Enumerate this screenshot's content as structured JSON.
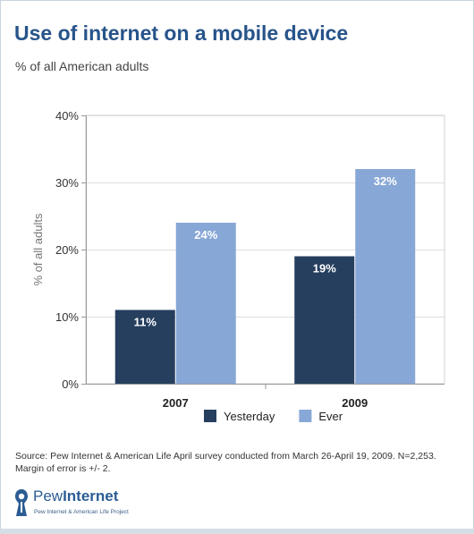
{
  "title": "Use of internet on a mobile device",
  "subtitle": "% of all American adults",
  "source": {
    "line1": "Source: Pew Internet & American Life April survey conducted from March 26-April 19, 2009. N=2,253.",
    "line2": "Margin of error is +/- 2."
  },
  "logo": {
    "name_plain": "Pew",
    "name_bold": "Internet",
    "subtext": "Pew Internet & American Life Project",
    "icon": "pew-figure-icon"
  },
  "colors": {
    "yesterday": "#263f5f",
    "ever": "#87a7d6"
  },
  "chart_data": {
    "type": "bar",
    "categories": [
      "2007",
      "2009"
    ],
    "series": [
      {
        "name": "Yesterday",
        "values": [
          11,
          19
        ],
        "labels": [
          "11%",
          "19%"
        ]
      },
      {
        "name": "Ever",
        "values": [
          24,
          32
        ],
        "labels": [
          "24%",
          "32%"
        ]
      }
    ],
    "ylabel": "% of all adults",
    "ylim": [
      0,
      40
    ],
    "yticks": [
      0,
      10,
      20,
      30,
      40
    ],
    "ytick_labels": [
      "0%",
      "10%",
      "20%",
      "30%",
      "40%"
    ],
    "grid": true,
    "legend": "bottom"
  }
}
